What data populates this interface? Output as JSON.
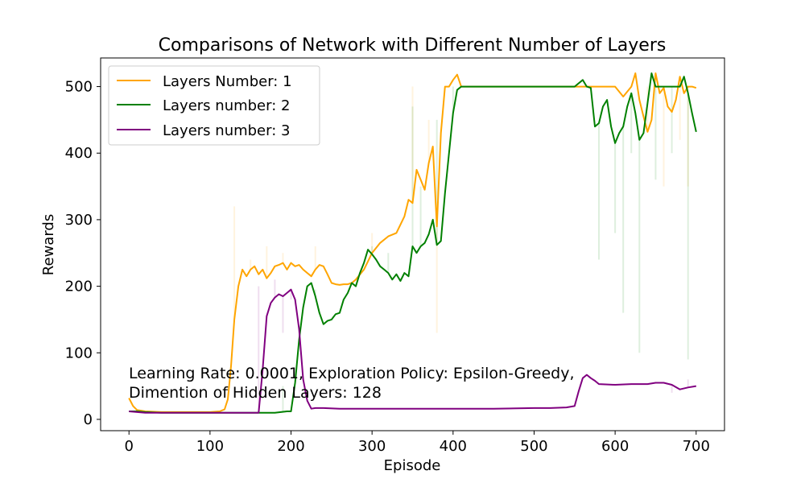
{
  "chart_data": {
    "type": "line",
    "title": "Comparisons of Network with Different Number of Layers",
    "xlabel": "Episode",
    "ylabel": "Rewards",
    "xlim": [
      -35,
      735
    ],
    "ylim": [
      -17,
      543
    ],
    "xticks": [
      0,
      100,
      200,
      300,
      400,
      500,
      600,
      700
    ],
    "yticks": [
      0,
      100,
      200,
      300,
      400,
      500
    ],
    "grid": false,
    "legend_position": "top-left",
    "annotation": [
      "Learning Rate: 0.0001, Exploration Policy: Epsilon-Greedy,",
      "Dimention of Hidden Layers: 128"
    ],
    "series": [
      {
        "name": "Layers Number: 1",
        "color": "#ffa500",
        "raw_spikes": [
          [
            130,
            320
          ],
          [
            150,
            240
          ],
          [
            170,
            260
          ],
          [
            190,
            250
          ],
          [
            230,
            260
          ],
          [
            300,
            280
          ],
          [
            350,
            500
          ],
          [
            370,
            450
          ],
          [
            380,
            130
          ],
          [
            390,
            500
          ],
          [
            640,
            500
          ],
          [
            660,
            350
          ],
          [
            680,
            420
          ],
          [
            690,
            350
          ]
        ],
        "x": [
          0,
          5,
          10,
          20,
          40,
          60,
          80,
          100,
          112,
          118,
          122,
          126,
          130,
          135,
          140,
          145,
          150,
          155,
          160,
          165,
          170,
          175,
          180,
          185,
          190,
          195,
          200,
          205,
          210,
          215,
          220,
          225,
          230,
          235,
          240,
          245,
          250,
          255,
          260,
          265,
          270,
          275,
          280,
          290,
          300,
          310,
          320,
          330,
          340,
          345,
          350,
          355,
          360,
          365,
          370,
          375,
          380,
          385,
          390,
          395,
          400,
          405,
          410,
          420,
          500,
          560,
          580,
          590,
          600,
          610,
          620,
          625,
          630,
          635,
          640,
          645,
          650,
          655,
          660,
          665,
          670,
          675,
          680,
          685,
          690,
          695,
          700
        ],
        "y": [
          32,
          20,
          14,
          12,
          11,
          11,
          11,
          11,
          12,
          15,
          30,
          80,
          150,
          200,
          225,
          215,
          225,
          230,
          218,
          225,
          212,
          220,
          230,
          232,
          235,
          225,
          235,
          230,
          232,
          225,
          220,
          215,
          225,
          232,
          230,
          218,
          205,
          203,
          202,
          203,
          203,
          205,
          210,
          225,
          250,
          265,
          275,
          280,
          305,
          330,
          325,
          375,
          360,
          345,
          385,
          410,
          290,
          430,
          500,
          500,
          510,
          518,
          500,
          500,
          500,
          500,
          500,
          500,
          500,
          485,
          500,
          520,
          480,
          455,
          432,
          450,
          520,
          490,
          498,
          470,
          462,
          480,
          515,
          490,
          500,
          500,
          498
        ]
      },
      {
        "name": "Layers number: 2",
        "color": "#008000",
        "raw_spikes": [
          [
            190,
            50
          ],
          [
            230,
            195
          ],
          [
            300,
            260
          ],
          [
            320,
            250
          ],
          [
            350,
            470
          ],
          [
            360,
            350
          ],
          [
            380,
            450
          ],
          [
            400,
            500
          ],
          [
            580,
            240
          ],
          [
            600,
            280
          ],
          [
            610,
            160
          ],
          [
            620,
            400
          ],
          [
            630,
            100
          ],
          [
            650,
            360
          ],
          [
            670,
            400
          ],
          [
            690,
            90
          ]
        ],
        "x": [
          0,
          10,
          20,
          40,
          60,
          80,
          100,
          120,
          140,
          160,
          180,
          195,
          200,
          205,
          210,
          215,
          220,
          225,
          230,
          235,
          240,
          245,
          250,
          255,
          260,
          265,
          270,
          275,
          280,
          285,
          290,
          295,
          300,
          305,
          310,
          315,
          320,
          325,
          330,
          335,
          340,
          345,
          350,
          355,
          360,
          365,
          370,
          375,
          380,
          385,
          390,
          395,
          400,
          405,
          410,
          420,
          500,
          550,
          560,
          565,
          570,
          575,
          580,
          585,
          590,
          595,
          600,
          605,
          610,
          615,
          620,
          625,
          630,
          635,
          640,
          645,
          650,
          660,
          670,
          680,
          685,
          690,
          695,
          700
        ],
        "y": [
          12,
          12,
          11,
          10,
          10,
          10,
          10,
          10,
          10,
          10,
          10,
          12,
          12,
          55,
          120,
          168,
          200,
          205,
          185,
          160,
          143,
          148,
          150,
          158,
          160,
          180,
          190,
          205,
          200,
          220,
          235,
          255,
          248,
          240,
          230,
          225,
          220,
          210,
          218,
          208,
          220,
          215,
          260,
          250,
          260,
          265,
          278,
          300,
          262,
          268,
          340,
          400,
          460,
          495,
          500,
          500,
          500,
          500,
          510,
          500,
          498,
          440,
          445,
          470,
          480,
          440,
          415,
          430,
          440,
          470,
          490,
          460,
          420,
          430,
          475,
          520,
          500,
          500,
          500,
          500,
          515,
          490,
          460,
          432
        ]
      },
      {
        "name": "Layers number: 3",
        "color": "#800080",
        "raw_spikes": [
          [
            160,
            200
          ],
          [
            180,
            210
          ],
          [
            190,
            130
          ],
          [
            200,
            180
          ],
          [
            650,
            55
          ],
          [
            670,
            40
          ],
          [
            690,
            60
          ]
        ],
        "x": [
          0,
          10,
          20,
          40,
          60,
          80,
          100,
          120,
          140,
          160,
          165,
          170,
          175,
          180,
          185,
          190,
          195,
          200,
          205,
          210,
          215,
          220,
          225,
          230,
          240,
          260,
          280,
          300,
          350,
          400,
          450,
          500,
          520,
          540,
          550,
          555,
          560,
          565,
          570,
          575,
          580,
          600,
          620,
          640,
          650,
          660,
          670,
          680,
          690,
          700
        ],
        "y": [
          12,
          11,
          10,
          10,
          10,
          10,
          10,
          10,
          10,
          10,
          75,
          155,
          175,
          183,
          188,
          185,
          190,
          195,
          180,
          135,
          60,
          28,
          16,
          17,
          17,
          16,
          16,
          16,
          16,
          16,
          16,
          17,
          17,
          18,
          20,
          42,
          62,
          67,
          62,
          58,
          53,
          52,
          53,
          53,
          55,
          55,
          52,
          45,
          48,
          50
        ]
      }
    ]
  }
}
